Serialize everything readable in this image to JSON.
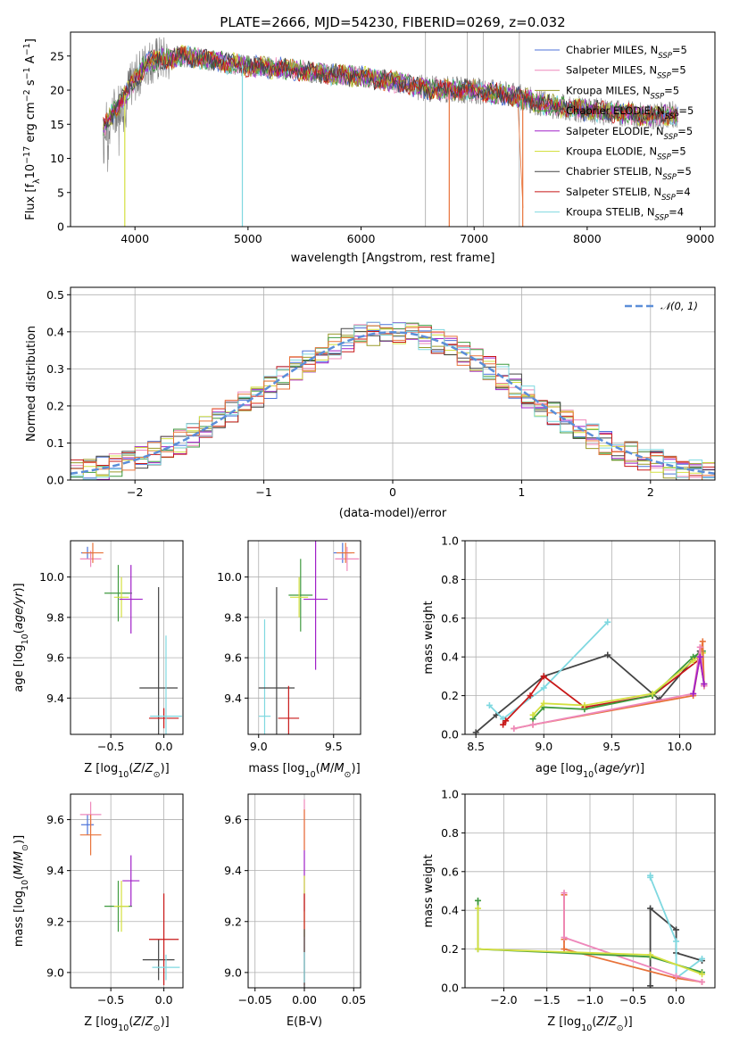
{
  "figure": {
    "title": "PLATE=2666, MJD=54230, FIBERID=0269, z=0.032"
  },
  "series_styles": [
    {
      "name": "Chabrier MILES",
      "legend_sub": "5",
      "color": "#4c72d9"
    },
    {
      "name": "Salpeter MILES",
      "legend_sub": "5",
      "color": "#ee88bb"
    },
    {
      "name": "Kroupa MILES",
      "legend_sub": "5",
      "color": "#9a9a2a"
    },
    {
      "name": "Chabrier ELODIE",
      "legend_sub": "5",
      "color": "#3f9a3f"
    },
    {
      "name": "Salpeter ELODIE",
      "legend_sub": "5",
      "color": "#a020c8"
    },
    {
      "name": "Kroupa ELODIE",
      "legend_sub": "5",
      "color": "#d4e040"
    },
    {
      "name": "Chabrier STELIB",
      "legend_sub": "5",
      "color": "#444444"
    },
    {
      "name": "Salpeter STELIB",
      "legend_sub": "4",
      "color": "#c81818"
    },
    {
      "name": "Kroupa STELIB",
      "legend_sub": "4",
      "color": "#7fd8e0"
    }
  ],
  "extra_colors": {
    "orange": "#e8733a",
    "gray": "#888888",
    "green_light": "#7ac048"
  },
  "chart_data": [
    {
      "id": "spectrum",
      "type": "line",
      "title": "PLATE=2666, MJD=54230, FIBERID=0269, z=0.032",
      "xlabel": "wavelength [Angstrom, rest frame]",
      "ylabel": "Flux [f_λ 10^-17 erg cm^-2 s^-1 A^-1]",
      "xlim": [
        3430,
        9130
      ],
      "ylim": [
        0,
        28.5
      ],
      "xticks": [
        4000,
        5000,
        6000,
        7000,
        8000,
        9000
      ],
      "yticks": [
        0,
        5,
        10,
        15,
        20,
        25
      ],
      "legend": "top-right",
      "continuum_x": [
        3720,
        3800,
        3900,
        4000,
        4100,
        4200,
        4300,
        4400,
        4500,
        4700,
        5000,
        5300,
        5600,
        6000,
        6300,
        6600,
        7000,
        7200,
        7400,
        7600,
        7800,
        8000,
        8200,
        8400,
        8600,
        8800
      ],
      "continuum_y": [
        14.5,
        16.5,
        19,
        21.5,
        24,
        24.5,
        24.5,
        25,
        24.8,
        24.3,
        23.5,
        23.2,
        22.5,
        22,
        21.2,
        20.2,
        20,
        19.5,
        19,
        18,
        17.5,
        17,
        16.8,
        16.5,
        16.2,
        16.5
      ],
      "grid": false
    },
    {
      "id": "residuals",
      "type": "bar",
      "xlabel": "(data-model)/error",
      "ylabel": "Normed distribution",
      "xlim": [
        -2.5,
        2.5
      ],
      "ylim": [
        0,
        0.52
      ],
      "xticks": [
        -2,
        -1,
        0,
        1,
        2
      ],
      "yticks": [
        0.0,
        0.1,
        0.2,
        0.3,
        0.4,
        0.5
      ],
      "legend_label": "𝒩(0, 1)",
      "grid": true
    },
    {
      "id": "age_vs_Z",
      "type": "scatter",
      "xlabel": "Z [log10(Z/Z⊙)]",
      "ylabel": "age [log10(age/yr)]",
      "xlim": [
        -0.88,
        0.18
      ],
      "ylim": [
        9.22,
        10.18
      ],
      "xticks": [
        -0.5,
        0.0
      ],
      "yticks": [
        9.4,
        9.6,
        9.8,
        10.0
      ],
      "points": [
        {
          "x": -0.72,
          "y": 10.12,
          "xerr": 0.06,
          "yerr": 0.03,
          "c": 0
        },
        {
          "x": -0.69,
          "y": 10.09,
          "xerr": 0.1,
          "yerr": 0.04,
          "c": 1
        },
        {
          "x": -0.67,
          "y": 10.12,
          "xerr": 0.1,
          "yerr": 0.05,
          "c": 9
        },
        {
          "x": -0.43,
          "y": 9.92,
          "xerr": 0.13,
          "yerr": 0.14,
          "c": 3
        },
        {
          "x": -0.4,
          "y": 9.9,
          "xerr": 0.07,
          "yerr": 0.1,
          "c": 5
        },
        {
          "x": -0.31,
          "y": 9.89,
          "xerr": 0.11,
          "yerr": 0.17,
          "c": 4
        },
        {
          "x": -0.05,
          "y": 9.45,
          "xerr": 0.18,
          "yerr": 0.5,
          "c": 6
        },
        {
          "x": 0.0,
          "y": 9.3,
          "xerr": 0.14,
          "yerr": 0.05,
          "c": 7
        },
        {
          "x": 0.02,
          "y": 9.31,
          "xerr": 0.15,
          "yerr": 0.4,
          "c": 8
        }
      ]
    },
    {
      "id": "age_vs_mass",
      "type": "scatter",
      "xlabel": "mass [log10(M/M⊙)]",
      "ylabel": "",
      "xlim": [
        8.93,
        9.68
      ],
      "ylim": [
        9.22,
        10.18
      ],
      "xticks": [
        9.0,
        9.5
      ],
      "yticks": [
        9.4,
        9.6,
        9.8,
        10.0
      ],
      "points": [
        {
          "x": 9.04,
          "y": 9.31,
          "xerr": 0.04,
          "yerr": 0.48,
          "c": 8
        },
        {
          "x": 9.12,
          "y": 9.45,
          "xerr": 0.12,
          "yerr": 0.5,
          "c": 6
        },
        {
          "x": 9.2,
          "y": 9.3,
          "xerr": 0.07,
          "yerr": 0.16,
          "c": 7
        },
        {
          "x": 9.28,
          "y": 9.91,
          "xerr": 0.08,
          "yerr": 0.18,
          "c": 3
        },
        {
          "x": 9.27,
          "y": 9.9,
          "xerr": 0.06,
          "yerr": 0.1,
          "c": 5
        },
        {
          "x": 9.38,
          "y": 9.89,
          "xerr": 0.08,
          "yerr": 0.35,
          "c": 4
        },
        {
          "x": 9.56,
          "y": 10.12,
          "xerr": 0.06,
          "yerr": 0.05,
          "c": 0
        },
        {
          "x": 9.59,
          "y": 10.09,
          "xerr": 0.08,
          "yerr": 0.06,
          "c": 1
        },
        {
          "x": 9.58,
          "y": 10.12,
          "xerr": 0.06,
          "yerr": 0.05,
          "c": 9
        }
      ]
    },
    {
      "id": "weight_vs_age",
      "type": "line",
      "xlabel": "age [log10(age/yr)]",
      "ylabel": "mass weight",
      "xlim": [
        8.42,
        10.26
      ],
      "ylim": [
        0,
        1.0
      ],
      "xticks": [
        8.5,
        9.0,
        9.5,
        10.0
      ],
      "yticks": [
        0.0,
        0.2,
        0.4,
        0.6,
        0.8,
        1.0
      ],
      "series": [
        {
          "c": 6,
          "x": [
            8.5,
            8.65,
            9.0,
            9.47,
            9.85,
            10.15
          ],
          "y": [
            0.01,
            0.1,
            0.3,
            0.41,
            0.18,
            0.43
          ]
        },
        {
          "c": 8,
          "x": [
            8.6,
            8.7,
            9.0,
            9.47
          ],
          "y": [
            0.15,
            0.08,
            0.24,
            0.58
          ]
        },
        {
          "c": 7,
          "x": [
            8.7,
            8.72,
            8.9,
            9.0,
            9.3,
            9.8,
            10.15,
            10.18
          ],
          "y": [
            0.05,
            0.07,
            0.2,
            0.3,
            0.14,
            0.2,
            0.39,
            0.26
          ]
        },
        {
          "c": 3,
          "x": [
            8.92,
            9.0,
            9.3,
            9.8,
            10.1,
            10.17,
            10.18
          ],
          "y": [
            0.08,
            0.14,
            0.13,
            0.2,
            0.4,
            0.43,
            0.25
          ]
        },
        {
          "c": 5,
          "x": [
            8.92,
            9.0,
            9.3,
            9.8,
            10.1,
            10.17,
            10.18
          ],
          "y": [
            0.1,
            0.16,
            0.15,
            0.21,
            0.38,
            0.42,
            0.25
          ]
        },
        {
          "c": 9,
          "x": [
            8.78,
            8.92,
            10.1,
            10.17,
            10.18
          ],
          "y": [
            0.03,
            0.05,
            0.2,
            0.48,
            0.25
          ]
        },
        {
          "c": 1,
          "x": [
            8.78,
            8.92,
            10.1,
            10.15,
            10.18
          ],
          "y": [
            0.03,
            0.05,
            0.21,
            0.45,
            0.25
          ]
        },
        {
          "c": 4,
          "x": [
            10.1,
            10.15,
            10.18
          ],
          "y": [
            0.21,
            0.4,
            0.26
          ]
        }
      ]
    },
    {
      "id": "mass_vs_Z",
      "type": "scatter",
      "xlabel": "Z [log10(Z/Z⊙)]",
      "ylabel": "mass [log10(M/M⊙)]",
      "xlim": [
        -0.88,
        0.18
      ],
      "ylim": [
        8.94,
        9.7
      ],
      "xticks": [
        -0.5,
        0.0
      ],
      "yticks": [
        9.0,
        9.2,
        9.4,
        9.6
      ],
      "points": [
        {
          "x": -0.72,
          "y": 9.58,
          "xerr": 0.06,
          "yerr": 0.04,
          "c": 0
        },
        {
          "x": -0.69,
          "y": 9.62,
          "xerr": 0.1,
          "yerr": 0.05,
          "c": 1
        },
        {
          "x": -0.69,
          "y": 9.54,
          "xerr": 0.1,
          "yerr": 0.08,
          "c": 9
        },
        {
          "x": -0.43,
          "y": 9.26,
          "xerr": 0.13,
          "yerr": 0.1,
          "c": 3
        },
        {
          "x": -0.4,
          "y": 9.26,
          "xerr": 0.07,
          "yerr": 0.1,
          "c": 5
        },
        {
          "x": -0.31,
          "y": 9.36,
          "xerr": 0.08,
          "yerr": 0.1,
          "c": 4
        },
        {
          "x": -0.05,
          "y": 9.05,
          "xerr": 0.15,
          "yerr": 0.08,
          "c": 6
        },
        {
          "x": 0.0,
          "y": 9.13,
          "xerr": 0.14,
          "yerr": 0.18,
          "c": 7
        },
        {
          "x": 0.02,
          "y": 9.02,
          "xerr": 0.13,
          "yerr": 0.05,
          "c": 8
        }
      ]
    },
    {
      "id": "mass_vs_ebv",
      "type": "scatter",
      "xlabel": "E(B-V)",
      "ylabel": "",
      "xlim": [
        -0.057,
        0.057
      ],
      "ylim": [
        8.94,
        9.7
      ],
      "xticks": [
        -0.05,
        0.0,
        0.05
      ],
      "yticks": [
        9.0,
        9.2,
        9.4,
        9.6
      ],
      "points": [
        {
          "x": 0.0,
          "y": 9.58,
          "xerr": 0.0,
          "yerr": 0.1,
          "c": 1
        },
        {
          "x": 0.0,
          "y": 9.56,
          "xerr": 0.0,
          "yerr": 0.08,
          "c": 9
        },
        {
          "x": 0.0,
          "y": 9.36,
          "xerr": 0.0,
          "yerr": 0.12,
          "c": 4
        },
        {
          "x": 0.0,
          "y": 9.26,
          "xerr": 0.0,
          "yerr": 0.12,
          "c": 5
        },
        {
          "x": 0.0,
          "y": 9.13,
          "xerr": 0.0,
          "yerr": 0.18,
          "c": 7
        },
        {
          "x": 0.0,
          "y": 9.05,
          "xerr": 0.0,
          "yerr": 0.12,
          "c": 6
        },
        {
          "x": 0.0,
          "y": 9.02,
          "xerr": 0.0,
          "yerr": 0.06,
          "c": 8
        }
      ]
    },
    {
      "id": "weight_vs_Z",
      "type": "line",
      "xlabel": "Z [log10(Z/Z⊙)]",
      "ylabel": "mass weight",
      "xlim": [
        -2.45,
        0.45
      ],
      "ylim": [
        0,
        1.0
      ],
      "xticks": [
        -2.0,
        -1.5,
        -1.0,
        -0.5,
        0.0
      ],
      "yticks": [
        0.0,
        0.2,
        0.4,
        0.6,
        0.8,
        1.0
      ],
      "series": [
        {
          "c": 6,
          "x": [
            -0.3,
            -0.3,
            0.0,
            0.0,
            0.3
          ],
          "y": [
            0.01,
            0.41,
            0.3,
            0.18,
            0.14
          ]
        },
        {
          "c": 8,
          "x": [
            -0.3,
            -0.3,
            0.0,
            0.0,
            0.3
          ],
          "y": [
            0.58,
            0.57,
            0.24,
            0.05,
            0.15
          ]
        },
        {
          "c": 9,
          "x": [
            -1.3,
            -1.3,
            -1.3,
            0.0,
            0.3
          ],
          "y": [
            0.48,
            0.25,
            0.2,
            0.05,
            0.03
          ]
        },
        {
          "c": 1,
          "x": [
            -1.3,
            -1.3,
            0.0,
            0.3
          ],
          "y": [
            0.49,
            0.26,
            0.06,
            0.03
          ]
        },
        {
          "c": 3,
          "x": [
            -2.3,
            -2.3,
            -0.3,
            0.3
          ],
          "y": [
            0.45,
            0.2,
            0.16,
            0.08
          ]
        },
        {
          "c": 5,
          "x": [
            -2.3,
            -2.3,
            -0.3,
            0.3
          ],
          "y": [
            0.41,
            0.2,
            0.17,
            0.07
          ]
        }
      ]
    }
  ]
}
